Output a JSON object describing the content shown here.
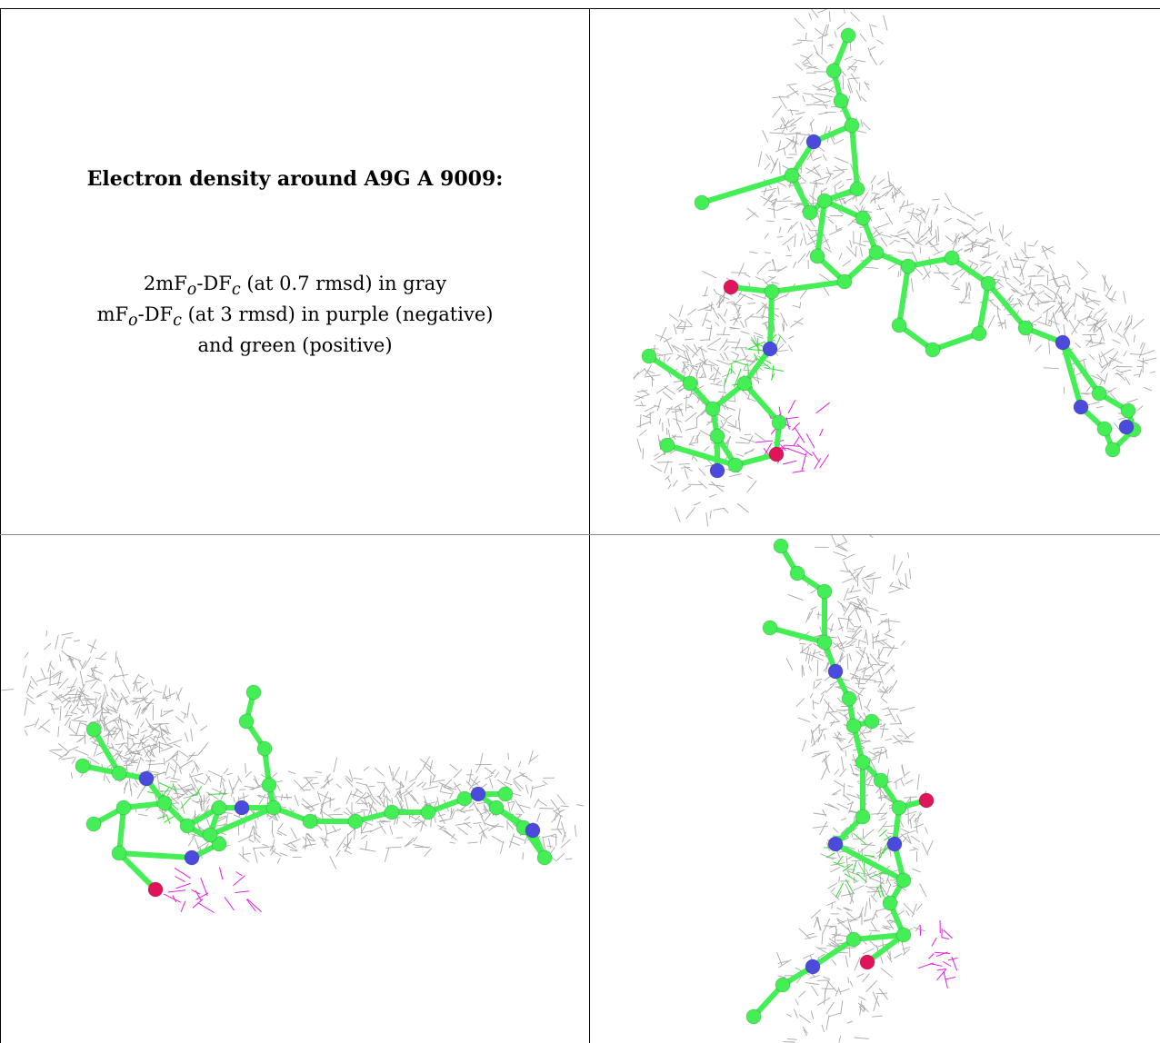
{
  "caption": {
    "title": "Electron density around A9G A 9009:",
    "map1_prefix": "2mF",
    "map1_sub_o": "o",
    "map1_mid": "-DF",
    "map1_sub_c": "c",
    "map1_suffix": " (at 0.7 rmsd) in gray",
    "map2_prefix": "mF",
    "map2_sub_o": "o",
    "map2_mid": "-DF",
    "map2_sub_c": "c",
    "map2_suffix": " (at 3 rmsd) in purple (negative)",
    "map2_line2": "and green (positive)"
  },
  "colors": {
    "mesh_2fofc": "#9a9a9a",
    "mesh_negative": "#e020e0",
    "mesh_positive": "#30e030",
    "carbon": "#44ee55",
    "nitrogen": "#4a4adc",
    "oxygen": "#e0145a"
  },
  "panels": [
    {
      "name": "view-front",
      "description_hidden": true
    },
    {
      "name": "view-side"
    },
    {
      "name": "view-end"
    }
  ]
}
